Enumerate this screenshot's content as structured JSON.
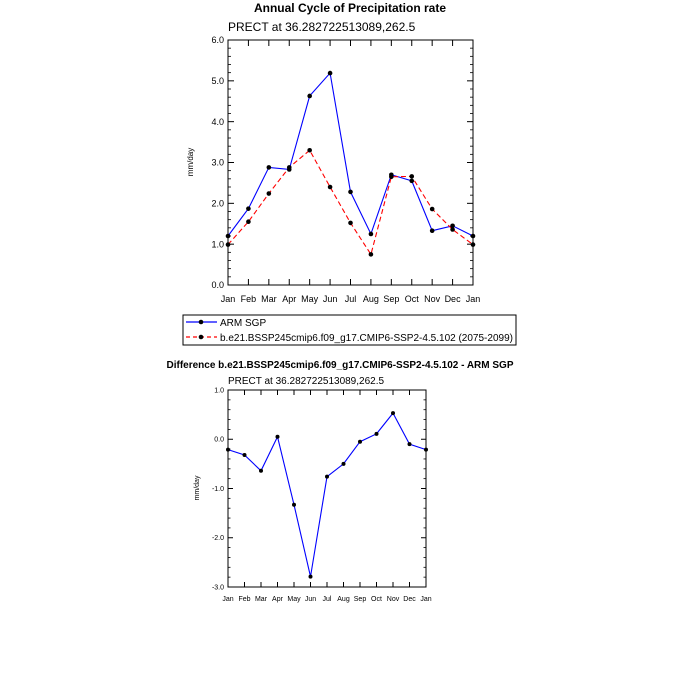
{
  "chart_data": [
    {
      "type": "line",
      "title": "Annual Cycle of Precipitation rate",
      "subtitle": "PRECT at 36.282722513089,262.5",
      "xlabel": "",
      "ylabel": "mm/day",
      "categories": [
        "Jan",
        "Feb",
        "Mar",
        "Apr",
        "May",
        "Jun",
        "Jul",
        "Aug",
        "Sep",
        "Oct",
        "Nov",
        "Dec",
        "Jan"
      ],
      "ylim": [
        0,
        6
      ],
      "yticks": [
        "0.0",
        "1.0",
        "2.0",
        "3.0",
        "4.0",
        "5.0",
        "6.0"
      ],
      "grid": false,
      "legend_position": "bottom",
      "series": [
        {
          "name": "ARM SGP",
          "color": "#0000ff",
          "style": "solid",
          "values": [
            1.2,
            1.87,
            2.88,
            2.83,
            4.63,
            5.19,
            2.28,
            1.25,
            2.7,
            2.55,
            1.33,
            1.45,
            1.2
          ]
        },
        {
          "name": "b.e21.BSSP245cmip6.f09_g17.CMIP6-SSP2-4.5.102 (2075-2099)",
          "color": "#ff0000",
          "style": "dashed",
          "values": [
            0.99,
            1.55,
            2.24,
            2.88,
            3.3,
            2.4,
            1.52,
            0.75,
            2.65,
            2.66,
            1.86,
            1.36,
            0.99
          ]
        }
      ]
    },
    {
      "type": "line",
      "title": "Difference b.e21.BSSP245cmip6.f09_g17.CMIP6-SSP2-4.5.102 - ARM SGP",
      "subtitle": "PRECT at 36.282722513089,262.5",
      "xlabel": "",
      "ylabel": "mm/day",
      "categories": [
        "Jan",
        "Feb",
        "Mar",
        "Apr",
        "May",
        "Jun",
        "Jul",
        "Aug",
        "Sep",
        "Oct",
        "Nov",
        "Dec",
        "Jan"
      ],
      "ylim": [
        -3,
        1
      ],
      "yticks": [
        "-3.0",
        "-2.0",
        "-1.0",
        "0.0",
        "1.0"
      ],
      "grid": false,
      "series": [
        {
          "name": "Difference",
          "color": "#0000ff",
          "style": "solid",
          "values": [
            -0.21,
            -0.32,
            -0.64,
            0.05,
            -1.33,
            -2.79,
            -0.76,
            -0.5,
            -0.05,
            0.11,
            0.53,
            -0.1,
            -0.21
          ]
        }
      ]
    }
  ]
}
